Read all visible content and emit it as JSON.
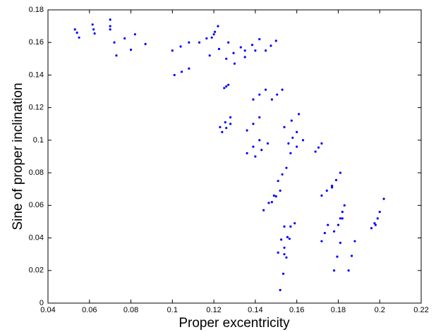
{
  "chart_data": {
    "type": "scatter",
    "xlabel": "Proper excentricity",
    "ylabel": "Sine of proper inclination",
    "color": "#0000ff",
    "xlim": [
      0.04,
      0.22
    ],
    "xticks": [
      0.04,
      0.06,
      0.08,
      0.1,
      0.12,
      0.14,
      0.16,
      0.18,
      0.2,
      0.22
    ],
    "ylim": [
      0,
      0.18
    ],
    "yticks": [
      0,
      0.02,
      0.04,
      0.06,
      0.08,
      0.1,
      0.12,
      0.14,
      0.16,
      0.18
    ],
    "grid": false,
    "x": [
      0.053,
      0.0615,
      0.07,
      0.054,
      0.062,
      0.07,
      0.055,
      0.0625,
      0.07,
      0.072,
      0.077,
      0.082,
      0.073,
      0.08,
      0.087,
      0.1,
      0.104,
      0.108,
      0.101,
      0.1045,
      0.108,
      0.113,
      0.1165,
      0.12,
      0.119,
      0.1205,
      0.122,
      0.118,
      0.1225,
      0.127,
      0.126,
      0.1295,
      0.133,
      0.13,
      0.135,
      0.14,
      0.135,
      0.1385,
      0.142,
      0.145,
      0.1475,
      0.15,
      0.125,
      0.126,
      0.127,
      0.139,
      0.142,
      0.145,
      0.148,
      0.1505,
      0.153,
      0.123,
      0.1255,
      0.128,
      0.124,
      0.126,
      0.128,
      0.136,
      0.139,
      0.142,
      0.136,
      0.139,
      0.142,
      0.14,
      0.143,
      0.146,
      0.154,
      0.1575,
      0.161,
      0.156,
      0.158,
      0.16,
      0.157,
      0.16,
      0.163,
      0.169,
      0.1705,
      0.172,
      0.151,
      0.153,
      0.155,
      0.144,
      0.1465,
      0.149,
      0.148,
      0.15,
      0.152,
      0.172,
      0.1745,
      0.177,
      0.177,
      0.179,
      0.181,
      0.178,
      0.18,
      0.182,
      0.181,
      0.182,
      0.183,
      0.172,
      0.1735,
      0.175,
      0.151,
      0.1525,
      0.154,
      0.154,
      0.1555,
      0.157,
      0.154,
      0.1565,
      0.159,
      0.152,
      0.1535,
      0.155,
      0.178,
      0.1795,
      0.181,
      0.185,
      0.1865,
      0.188,
      0.198,
      0.2,
      0.202,
      0.196,
      0.1975,
      0.199
    ],
    "y": [
      0.168,
      0.171,
      0.174,
      0.166,
      0.168,
      0.17,
      0.163,
      0.1655,
      0.168,
      0.16,
      0.1625,
      0.165,
      0.152,
      0.1555,
      0.159,
      0.155,
      0.1575,
      0.16,
      0.14,
      0.142,
      0.144,
      0.16,
      0.1625,
      0.165,
      0.163,
      0.1665,
      0.17,
      0.152,
      0.156,
      0.16,
      0.15,
      0.1535,
      0.157,
      0.147,
      0.151,
      0.155,
      0.155,
      0.1585,
      0.162,
      0.155,
      0.158,
      0.161,
      0.132,
      0.133,
      0.134,
      0.125,
      0.128,
      0.131,
      0.125,
      0.128,
      0.131,
      0.108,
      0.111,
      0.114,
      0.105,
      0.1075,
      0.11,
      0.106,
      0.11,
      0.114,
      0.092,
      0.096,
      0.1,
      0.09,
      0.094,
      0.098,
      0.108,
      0.112,
      0.116,
      0.098,
      0.1015,
      0.105,
      0.092,
      0.096,
      0.1,
      0.093,
      0.0955,
      0.098,
      0.075,
      0.079,
      0.083,
      0.057,
      0.0615,
      0.066,
      0.062,
      0.0655,
      0.069,
      0.066,
      0.069,
      0.072,
      0.071,
      0.0755,
      0.08,
      0.044,
      0.048,
      0.052,
      0.052,
      0.056,
      0.06,
      0.038,
      0.043,
      0.048,
      0.031,
      0.039,
      0.047,
      0.034,
      0.0405,
      0.047,
      0.03,
      0.0395,
      0.049,
      0.008,
      0.018,
      0.028,
      0.02,
      0.0285,
      0.037,
      0.02,
      0.029,
      0.038,
      0.048,
      0.056,
      0.064,
      0.046,
      0.049,
      0.052
    ]
  }
}
